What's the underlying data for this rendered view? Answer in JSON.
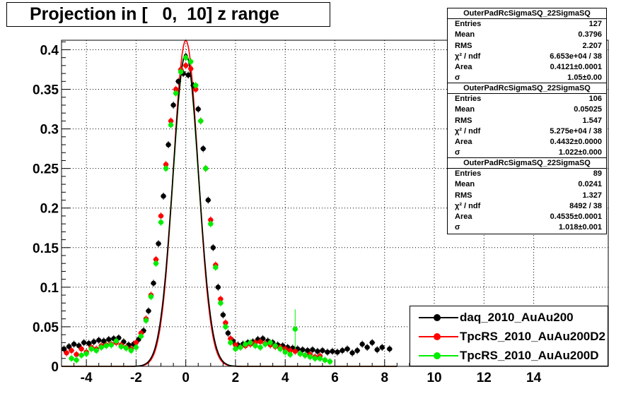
{
  "title": "Projection in [   0,  10] z range",
  "chart_data": {
    "type": "scatter",
    "xlim": [
      -5,
      17
    ],
    "ylim": [
      0,
      0.412
    ],
    "x_ticks": [
      -4,
      -2,
      0,
      2,
      4,
      6,
      8,
      10,
      12,
      14
    ],
    "x_tick_labels": [
      "-4",
      "-2",
      "0",
      "2",
      "4",
      "6",
      "8",
      "10",
      "12",
      "14"
    ],
    "y_ticks": [
      0,
      0.05,
      0.1,
      0.15,
      0.2,
      0.25,
      0.3,
      0.35,
      0.4
    ],
    "y_tick_labels": [
      "0",
      "0.05",
      "0.1",
      "0.15",
      "0.2",
      "0.25",
      "0.3",
      "0.35",
      "0.4"
    ],
    "grid": true,
    "legend_position": "bottom-right",
    "series": [
      {
        "name": "daq_2010_AuAu200",
        "color": "#000000",
        "fit": {
          "peak": 0.395,
          "sigma": 0.52
        },
        "points": [
          [
            -4.9,
            0.022
          ],
          [
            -4.7,
            0.025
          ],
          [
            -4.5,
            0.028
          ],
          [
            -4.3,
            0.026
          ],
          [
            -4.1,
            0.03
          ],
          [
            -3.9,
            0.029
          ],
          [
            -3.7,
            0.031
          ],
          [
            -3.5,
            0.033
          ],
          [
            -3.3,
            0.032
          ],
          [
            -3.1,
            0.034
          ],
          [
            -2.9,
            0.035
          ],
          [
            -2.7,
            0.036
          ],
          [
            -2.5,
            0.031
          ],
          [
            -2.3,
            0.027
          ],
          [
            -2.1,
            0.028
          ],
          [
            -1.9,
            0.034
          ],
          [
            -1.7,
            0.045
          ],
          [
            -1.5,
            0.07
          ],
          [
            -1.3,
            0.105
          ],
          [
            -1.1,
            0.155
          ],
          [
            -0.9,
            0.215
          ],
          [
            -0.7,
            0.28
          ],
          [
            -0.5,
            0.33
          ],
          [
            -0.3,
            0.36
          ],
          [
            -0.1,
            0.37
          ],
          [
            0.1,
            0.368
          ],
          [
            0.3,
            0.355
          ],
          [
            0.5,
            0.325
          ],
          [
            0.7,
            0.275
          ],
          [
            0.9,
            0.21
          ],
          [
            1.1,
            0.15
          ],
          [
            1.3,
            0.1
          ],
          [
            1.5,
            0.065
          ],
          [
            1.7,
            0.042
          ],
          [
            1.9,
            0.032
          ],
          [
            2.1,
            0.027
          ],
          [
            2.3,
            0.028
          ],
          [
            2.5,
            0.03
          ],
          [
            2.7,
            0.031
          ],
          [
            2.9,
            0.034
          ],
          [
            3.1,
            0.035
          ],
          [
            3.3,
            0.032
          ],
          [
            3.5,
            0.03
          ],
          [
            3.7,
            0.027
          ],
          [
            3.9,
            0.026
          ],
          [
            4.1,
            0.024
          ],
          [
            4.3,
            0.023
          ],
          [
            4.5,
            0.022
          ],
          [
            4.7,
            0.021
          ],
          [
            4.9,
            0.02
          ],
          [
            5.1,
            0.021
          ],
          [
            5.3,
            0.019
          ],
          [
            5.5,
            0.02
          ],
          [
            5.7,
            0.018
          ],
          [
            5.9,
            0.019
          ],
          [
            6.1,
            0.018
          ],
          [
            6.3,
            0.02
          ],
          [
            6.5,
            0.022
          ],
          [
            6.7,
            0.017
          ],
          [
            6.9,
            0.02
          ],
          [
            7.1,
            0.028
          ],
          [
            7.3,
            0.024
          ],
          [
            7.5,
            0.03
          ],
          [
            7.7,
            0.021
          ],
          [
            7.9,
            0.024
          ],
          [
            8.2,
            0.022
          ]
        ]
      },
      {
        "name": "TpcRS_2010_AuAu200D2",
        "color": "#ff0000",
        "fit": {
          "peak": 0.412,
          "sigma": 0.5
        },
        "points": [
          [
            -4.8,
            0.017
          ],
          [
            -4.6,
            0.02
          ],
          [
            -4.4,
            0.015
          ],
          [
            -4.2,
            0.022
          ],
          [
            -4.0,
            0.018
          ],
          [
            -3.8,
            0.024
          ],
          [
            -3.6,
            0.022
          ],
          [
            -3.4,
            0.026
          ],
          [
            -3.2,
            0.027
          ],
          [
            -3.0,
            0.028
          ],
          [
            -2.8,
            0.03
          ],
          [
            -2.6,
            0.027
          ],
          [
            -2.4,
            0.024
          ],
          [
            -2.2,
            0.022
          ],
          [
            -2.0,
            0.03
          ],
          [
            -1.8,
            0.042
          ],
          [
            -1.6,
            0.06
          ],
          [
            -1.4,
            0.09
          ],
          [
            -1.2,
            0.135
          ],
          [
            -1.0,
            0.19
          ],
          [
            -0.8,
            0.255
          ],
          [
            -0.6,
            0.31
          ],
          [
            -0.4,
            0.35
          ],
          [
            -0.2,
            0.375
          ],
          [
            0.0,
            0.38
          ],
          [
            0.2,
            0.376
          ],
          [
            0.4,
            0.35
          ],
          [
            0.6,
            0.31
          ],
          [
            0.8,
            0.25
          ],
          [
            1.0,
            0.185
          ],
          [
            1.2,
            0.128
          ],
          [
            1.4,
            0.085
          ],
          [
            1.6,
            0.055
          ],
          [
            1.8,
            0.035
          ],
          [
            2.0,
            0.027
          ],
          [
            2.2,
            0.024
          ],
          [
            2.4,
            0.026
          ],
          [
            2.6,
            0.028
          ],
          [
            2.8,
            0.03
          ],
          [
            3.0,
            0.031
          ],
          [
            3.2,
            0.029
          ],
          [
            3.4,
            0.027
          ],
          [
            3.6,
            0.025
          ],
          [
            3.8,
            0.024
          ],
          [
            4.0,
            0.022
          ],
          [
            4.2,
            0.02
          ],
          [
            4.4,
            0.019
          ],
          [
            4.6,
            0.016
          ],
          [
            4.8,
            0.014
          ],
          [
            5.0,
            0.015
          ],
          [
            5.2,
            0.012
          ],
          [
            5.4,
            0.013
          ]
        ]
      },
      {
        "name": "TpcRS_2010_AuAu200D",
        "color": "#00ee00",
        "fit": {
          "peak": 0.395,
          "sigma": 0.51
        },
        "points": [
          [
            -4.6,
            0.01
          ],
          [
            -4.4,
            0.008
          ],
          [
            -4.2,
            0.014
          ],
          [
            -4.0,
            0.016
          ],
          [
            -3.8,
            0.022
          ],
          [
            -3.6,
            0.02
          ],
          [
            -3.4,
            0.024
          ],
          [
            -3.2,
            0.026
          ],
          [
            -3.0,
            0.027
          ],
          [
            -2.8,
            0.032
          ],
          [
            -2.6,
            0.025
          ],
          [
            -2.4,
            0.023
          ],
          [
            -2.2,
            0.02
          ],
          [
            -2.0,
            0.024
          ],
          [
            -1.8,
            0.038
          ],
          [
            -1.6,
            0.058
          ],
          [
            -1.4,
            0.088
          ],
          [
            -1.2,
            0.13
          ],
          [
            -1.0,
            0.182
          ],
          [
            -0.8,
            0.25
          ],
          [
            -0.6,
            0.305
          ],
          [
            -0.4,
            0.345
          ],
          [
            -0.2,
            0.372
          ],
          [
            0.0,
            0.39
          ],
          [
            0.2,
            0.385
          ],
          [
            0.4,
            0.355
          ],
          [
            0.6,
            0.31
          ],
          [
            0.8,
            0.25
          ],
          [
            1.0,
            0.18
          ],
          [
            1.2,
            0.125
          ],
          [
            1.4,
            0.08
          ],
          [
            1.6,
            0.05
          ],
          [
            1.8,
            0.03
          ],
          [
            2.0,
            0.022
          ],
          [
            2.2,
            0.024
          ],
          [
            2.4,
            0.028
          ],
          [
            2.6,
            0.03
          ],
          [
            2.8,
            0.026
          ],
          [
            3.0,
            0.024
          ],
          [
            3.2,
            0.028
          ],
          [
            3.4,
            0.03
          ],
          [
            3.6,
            0.026
          ],
          [
            3.8,
            0.022
          ],
          [
            4.0,
            0.018
          ],
          [
            4.2,
            0.015
          ],
          [
            4.4,
            0.047
          ],
          [
            4.6,
            0.016
          ],
          [
            4.8,
            0.014
          ],
          [
            5.0,
            0.012
          ],
          [
            5.2,
            0.01
          ],
          [
            5.4,
            0.01
          ],
          [
            5.6,
            0.008
          ],
          [
            5.8,
            0.006
          ]
        ]
      }
    ]
  },
  "stats_boxes": [
    {
      "header": "OuterPadRcSigmaSQ_22SigmaSQ",
      "rows": [
        [
          "Entries",
          "127"
        ],
        [
          "Mean",
          "0.3796"
        ],
        [
          "RMS",
          "2.207"
        ],
        [
          "χ² / ndf",
          "6.653e+04 / 38"
        ],
        [
          "Area",
          "0.4121±0.0001"
        ],
        [
          "σ",
          "1.05±0.00"
        ]
      ]
    },
    {
      "header": "OuterPadRcSigmaSQ_22SigmaSQ",
      "rows": [
        [
          "Entries",
          "106"
        ],
        [
          "Mean",
          "0.05025"
        ],
        [
          "RMS",
          "1.547"
        ],
        [
          "χ² / ndf",
          "5.275e+04 / 38"
        ],
        [
          "Area",
          "0.4432±0.0000"
        ],
        [
          "σ",
          "1.022±0.000"
        ]
      ]
    },
    {
      "header": "OuterPadRcSigmaSQ_22SigmaSQ",
      "rows": [
        [
          "Entries",
          "89"
        ],
        [
          "Mean",
          "0.0241"
        ],
        [
          "RMS",
          "1.327"
        ],
        [
          "χ² / ndf",
          "8492 / 38"
        ],
        [
          "Area",
          "0.4535±0.0001"
        ],
        [
          "σ",
          "1.018±0.001"
        ]
      ]
    }
  ],
  "legend": [
    {
      "label": "daq_2010_AuAu200",
      "color": "#000000"
    },
    {
      "label": "TpcRS_2010_AuAu200D2",
      "color": "#ff0000"
    },
    {
      "label": "TpcRS_2010_AuAu200D",
      "color": "#00ee00"
    }
  ]
}
